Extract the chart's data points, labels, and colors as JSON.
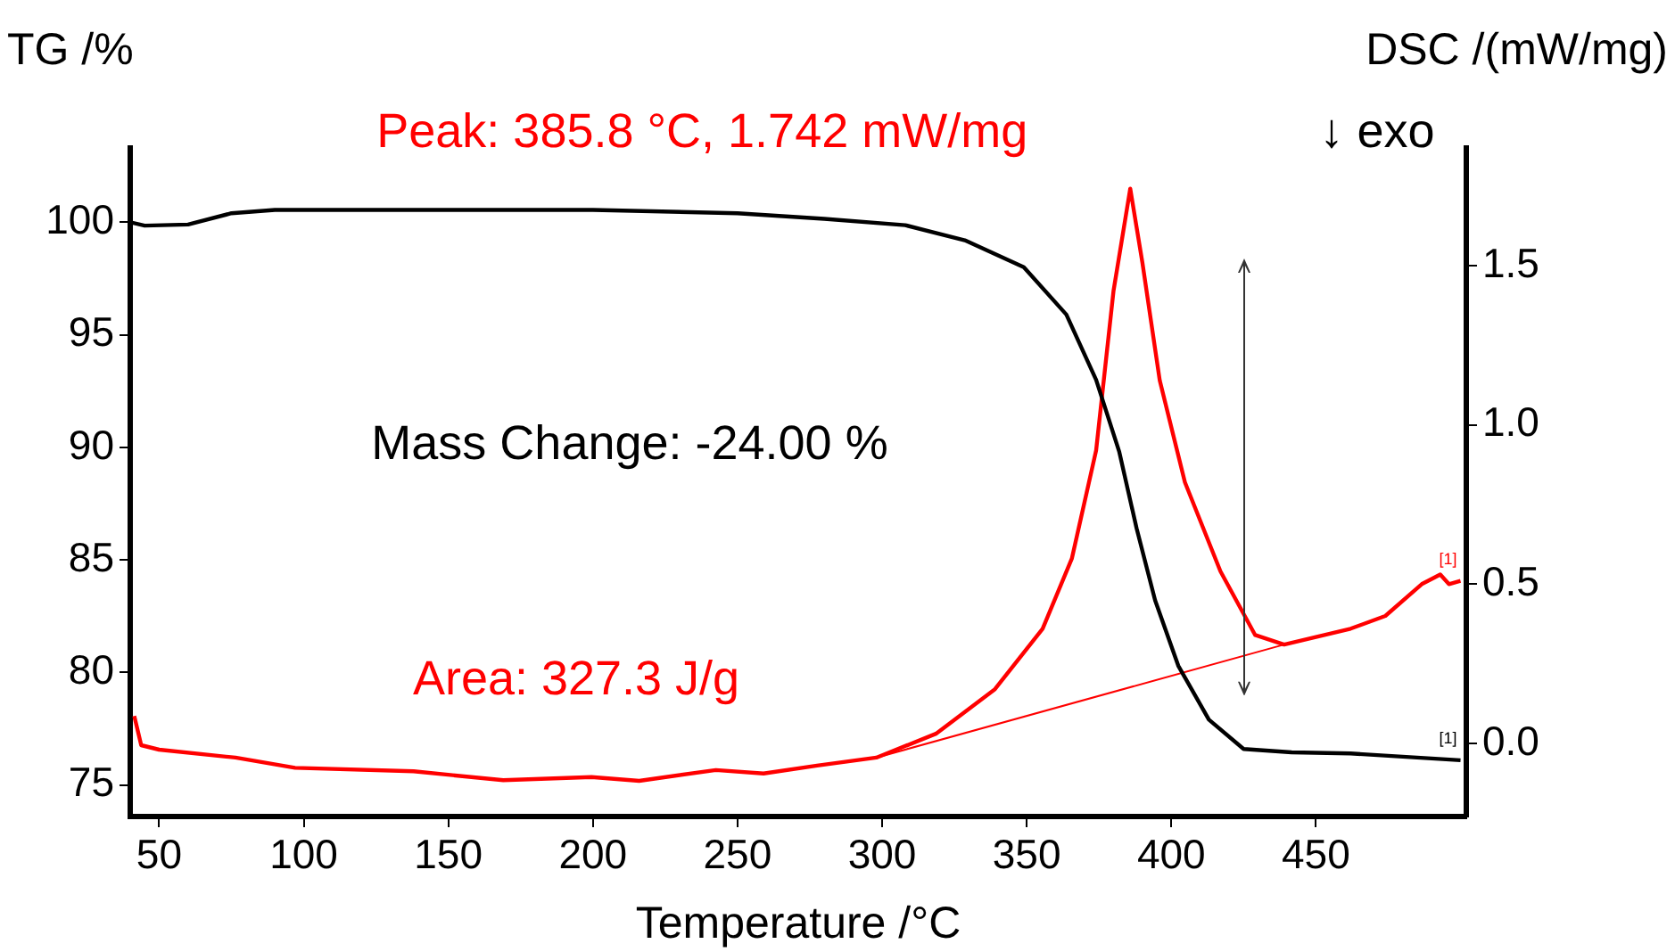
{
  "chart_data": {
    "type": "line",
    "xlabel": "Temperature /°C",
    "ylabel": "TG /%",
    "y2label": "DSC /(mW/mg)",
    "xlim": [
      40,
      502
    ],
    "xticks": [
      50,
      100,
      150,
      200,
      250,
      300,
      350,
      400,
      450
    ],
    "ylim": [
      73.6,
      103.3
    ],
    "yticks": [
      75,
      80,
      85,
      90,
      95,
      100
    ],
    "y2lim": [
      -0.23,
      1.87
    ],
    "y2ticks": [
      {
        "value": 0,
        "label": "0.0"
      },
      0.5,
      {
        "value": 1,
        "label": "1.0"
      },
      1.5
    ],
    "grid": false,
    "legend": false,
    "marker": "none",
    "line_style": "solid",
    "series": [
      {
        "color": "#000000",
        "x": [
          40,
          45,
          60,
          75,
          90,
          150,
          200,
          250,
          280,
          308,
          328.6,
          349,
          363.7,
          374,
          382,
          388,
          394.4,
          402.4,
          413,
          425,
          441.6,
          462,
          500
        ],
        "values": [
          100,
          99.85,
          99.9,
          100.4,
          100.55,
          100.55,
          100.55,
          100.4,
          100.15,
          99.87,
          99.2,
          98,
          95.9,
          93,
          89.8,
          86.4,
          83.2,
          80.3,
          77.9,
          76.6,
          76.45,
          76.4,
          76.1
        ]
      },
      {
        "color": "#ff0000",
        "axis": "y2",
        "x": [
          41.4,
          43.8,
          50,
          76.4,
          97,
          138,
          169,
          199.5,
          216,
          242.5,
          259,
          277.5,
          298,
          318.6,
          339,
          355.5,
          365.6,
          374,
          380,
          385.8,
          390,
          396,
          404.7,
          417,
          429,
          439,
          462,
          474,
          486.6,
          493,
          496,
          500
        ],
        "values": [
          0.086,
          -0.006,
          -0.02,
          -0.045,
          -0.077,
          -0.088,
          -0.116,
          -0.106,
          -0.118,
          -0.084,
          -0.095,
          -0.07,
          -0.045,
          0.03,
          0.17,
          0.36,
          0.58,
          0.92,
          1.42,
          1.742,
          1.51,
          1.14,
          0.82,
          0.54,
          0.34,
          0.31,
          0.36,
          0.4,
          0.5,
          0.53,
          0.5,
          0.51
        ]
      },
      {
        "color": "#ff0000",
        "axis": "y2",
        "x": [
          298,
          439
        ],
        "values": [
          -0.045,
          0.31
        ]
      }
    ],
    "annotations": [
      "Peak: 385.8 °C, 1.742 mW/mg",
      "↓ exo",
      "Mass Change: -24.00 %",
      "Area: 327.3 J/g",
      "[1]",
      "[1]"
    ]
  }
}
